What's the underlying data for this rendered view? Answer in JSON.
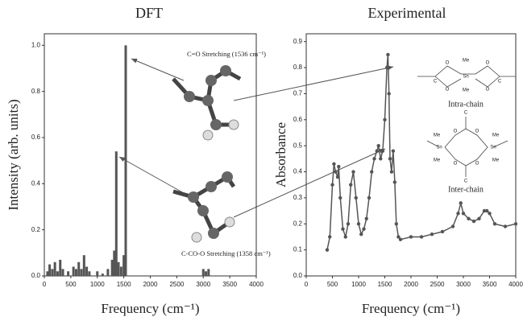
{
  "chart_data": [
    {
      "type": "bar",
      "title": "DFT",
      "xlabel": "Frequency (cm⁻¹)",
      "ylabel": "Intensity (arb. units)",
      "x": [
        60,
        100,
        150,
        200,
        250,
        300,
        350,
        450,
        550,
        600,
        650,
        700,
        750,
        800,
        850,
        1000,
        1100,
        1200,
        1280,
        1320,
        1358,
        1400,
        1450,
        1500,
        1536,
        3000,
        3050,
        3100
      ],
      "values": [
        0.02,
        0.05,
        0.03,
        0.06,
        0.02,
        0.07,
        0.03,
        0.02,
        0.04,
        0.03,
        0.06,
        0.03,
        0.09,
        0.04,
        0.02,
        0.02,
        0.01,
        0.03,
        0.07,
        0.11,
        0.54,
        0.06,
        0.04,
        0.09,
        1.0,
        0.03,
        0.02,
        0.03
      ],
      "color": "#555555",
      "xlim": [
        0,
        4000
      ],
      "xticks": [
        0,
        500,
        1000,
        1500,
        2000,
        2500,
        3000,
        3500,
        4000
      ],
      "ylim": [
        0,
        1.05
      ],
      "yticks": [
        {
          "value": 0,
          "label": "0.0"
        },
        {
          "value": 0.2,
          "label": "0.2"
        },
        {
          "value": 0.4,
          "label": "0.4"
        },
        {
          "value": 0.6,
          "label": "0.6"
        },
        {
          "value": 0.8,
          "label": "0.8"
        },
        {
          "value": 1,
          "label": "1.0"
        }
      ],
      "annotations": [
        "C=O Stretching (1536 cm⁻¹)",
        "C-CO-O Stretching (1358 cm⁻¹)"
      ]
    },
    {
      "type": "line",
      "title": "Experimental",
      "xlabel": "Frequency (cm⁻¹)",
      "ylabel": "Absorbance",
      "x": [
        400,
        450,
        500,
        530,
        560,
        600,
        620,
        650,
        700,
        750,
        800,
        850,
        900,
        950,
        1000,
        1050,
        1100,
        1150,
        1200,
        1250,
        1300,
        1350,
        1380,
        1420,
        1460,
        1500,
        1540,
        1560,
        1580,
        1600,
        1630,
        1660,
        1690,
        1720,
        1760,
        1800,
        2000,
        2200,
        2400,
        2600,
        2800,
        2900,
        2950,
        3000,
        3100,
        3200,
        3300,
        3400,
        3450,
        3500,
        3600,
        3800,
        4000
      ],
      "values": [
        0.1,
        0.15,
        0.35,
        0.43,
        0.4,
        0.38,
        0.42,
        0.3,
        0.18,
        0.15,
        0.2,
        0.35,
        0.4,
        0.3,
        0.2,
        0.16,
        0.18,
        0.22,
        0.3,
        0.4,
        0.45,
        0.48,
        0.5,
        0.45,
        0.48,
        0.6,
        0.8,
        0.85,
        0.7,
        0.45,
        0.4,
        0.48,
        0.36,
        0.2,
        0.15,
        0.14,
        0.15,
        0.15,
        0.16,
        0.17,
        0.19,
        0.24,
        0.28,
        0.24,
        0.22,
        0.21,
        0.22,
        0.25,
        0.25,
        0.24,
        0.2,
        0.19,
        0.2
      ],
      "color": "#555555",
      "xlim": [
        0,
        4000
      ],
      "xticks": [
        0,
        500,
        1000,
        1500,
        2000,
        2500,
        3000,
        3500,
        4000
      ],
      "ylim": [
        0,
        0.93
      ],
      "yticks": [
        {
          "value": 0,
          "label": "0.0"
        },
        0.1,
        0.2,
        0.3,
        0.4,
        0.5,
        0.6,
        0.7,
        0.8,
        0.9
      ],
      "annotations": [
        "Intra-chain",
        "Inter-chain"
      ],
      "structure_labels": [
        "Me",
        "Sn",
        "Me",
        "O",
        "O",
        "O",
        "O",
        "C",
        "C",
        "Me",
        "Sn",
        "Me",
        "Me",
        "Sn",
        "Me",
        "O",
        "O",
        "O",
        "O",
        "C",
        "C"
      ]
    }
  ]
}
